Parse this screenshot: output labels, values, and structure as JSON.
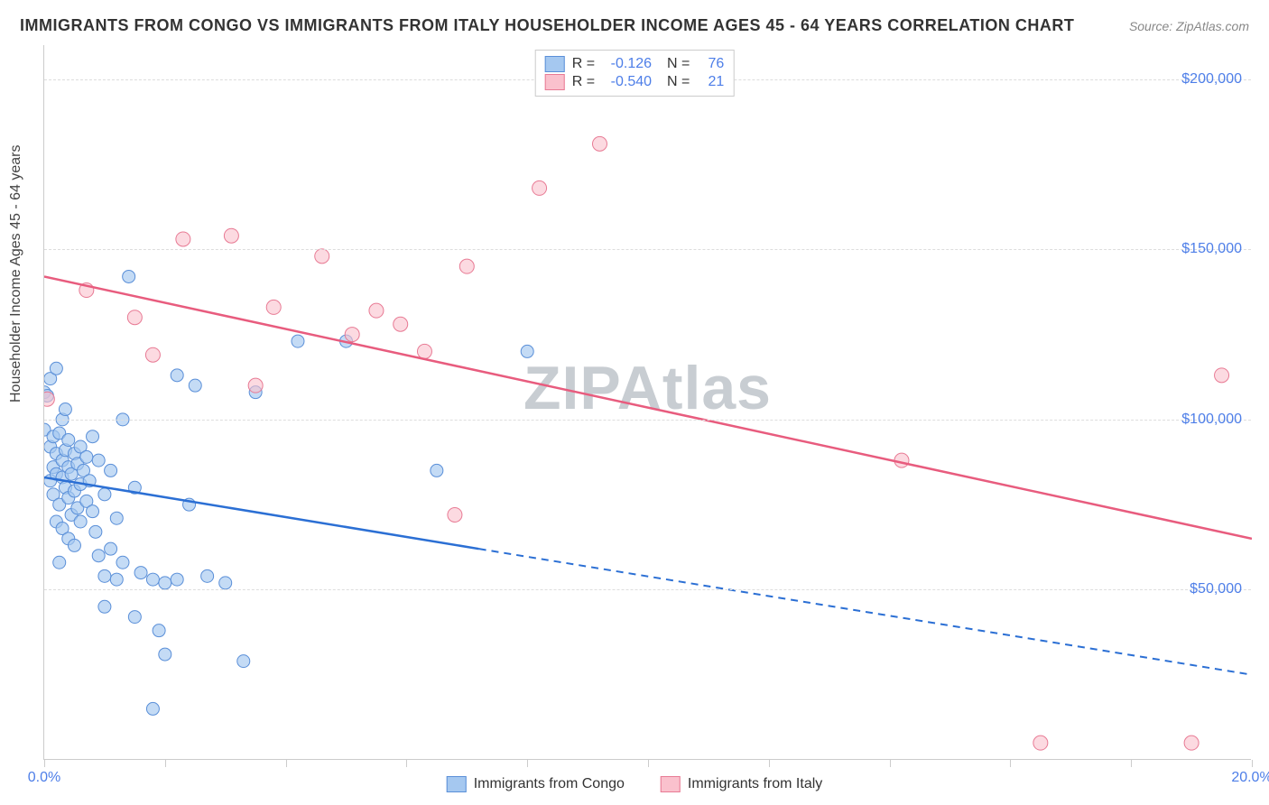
{
  "title": "IMMIGRANTS FROM CONGO VS IMMIGRANTS FROM ITALY HOUSEHOLDER INCOME AGES 45 - 64 YEARS CORRELATION CHART",
  "source": "Source: ZipAtlas.com",
  "watermark": "ZIPAtlas",
  "y_axis_label": "Householder Income Ages 45 - 64 years",
  "chart": {
    "type": "scatter",
    "xlim": [
      0,
      20
    ],
    "ylim": [
      0,
      210000
    ],
    "x_ticks": [
      0,
      2,
      4,
      6,
      8,
      10,
      12,
      14,
      16,
      18,
      20
    ],
    "x_tick_labels": {
      "0": "0.0%",
      "20": "20.0%"
    },
    "y_ticks": [
      50000,
      100000,
      150000,
      200000
    ],
    "y_tick_labels": {
      "50000": "$50,000",
      "100000": "$100,000",
      "150000": "$150,000",
      "200000": "$200,000"
    },
    "grid_color": "#dddddd",
    "axis_color": "#cccccc",
    "background_color": "#ffffff",
    "series": [
      {
        "name": "Immigrants from Congo",
        "color_fill": "#a5c8f0",
        "color_stroke": "#5a8fd8",
        "line_color": "#2b6fd4",
        "marker_radius": 7,
        "marker_opacity": 0.65,
        "R": "-0.126",
        "N": "76",
        "regression": {
          "x1": 0,
          "y1": 83000,
          "x2_solid": 7.2,
          "y2_solid": 62000,
          "x2_dash": 20,
          "y2_dash": 25000
        },
        "points": [
          [
            0.0,
            108000
          ],
          [
            0.0,
            97000
          ],
          [
            0.05,
            107000
          ],
          [
            0.1,
            82000
          ],
          [
            0.1,
            112000
          ],
          [
            0.1,
            92000
          ],
          [
            0.15,
            86000
          ],
          [
            0.15,
            78000
          ],
          [
            0.15,
            95000
          ],
          [
            0.2,
            115000
          ],
          [
            0.2,
            70000
          ],
          [
            0.2,
            84000
          ],
          [
            0.2,
            90000
          ],
          [
            0.25,
            96000
          ],
          [
            0.25,
            75000
          ],
          [
            0.25,
            58000
          ],
          [
            0.3,
            83000
          ],
          [
            0.3,
            100000
          ],
          [
            0.3,
            68000
          ],
          [
            0.3,
            88000
          ],
          [
            0.35,
            80000
          ],
          [
            0.35,
            91000
          ],
          [
            0.35,
            103000
          ],
          [
            0.4,
            77000
          ],
          [
            0.4,
            86000
          ],
          [
            0.4,
            65000
          ],
          [
            0.4,
            94000
          ],
          [
            0.45,
            72000
          ],
          [
            0.45,
            84000
          ],
          [
            0.5,
            79000
          ],
          [
            0.5,
            90000
          ],
          [
            0.5,
            63000
          ],
          [
            0.55,
            87000
          ],
          [
            0.55,
            74000
          ],
          [
            0.6,
            81000
          ],
          [
            0.6,
            92000
          ],
          [
            0.6,
            70000
          ],
          [
            0.65,
            85000
          ],
          [
            0.7,
            76000
          ],
          [
            0.7,
            89000
          ],
          [
            0.75,
            82000
          ],
          [
            0.8,
            73000
          ],
          [
            0.8,
            95000
          ],
          [
            0.85,
            67000
          ],
          [
            0.9,
            88000
          ],
          [
            0.9,
            60000
          ],
          [
            1.0,
            54000
          ],
          [
            1.0,
            78000
          ],
          [
            1.0,
            45000
          ],
          [
            1.1,
            62000
          ],
          [
            1.1,
            85000
          ],
          [
            1.2,
            53000
          ],
          [
            1.2,
            71000
          ],
          [
            1.3,
            100000
          ],
          [
            1.3,
            58000
          ],
          [
            1.4,
            142000
          ],
          [
            1.5,
            42000
          ],
          [
            1.5,
            80000
          ],
          [
            1.6,
            55000
          ],
          [
            1.8,
            53000
          ],
          [
            1.8,
            15000
          ],
          [
            1.9,
            38000
          ],
          [
            2.0,
            31000
          ],
          [
            2.0,
            52000
          ],
          [
            2.2,
            113000
          ],
          [
            2.2,
            53000
          ],
          [
            2.4,
            75000
          ],
          [
            2.5,
            110000
          ],
          [
            2.7,
            54000
          ],
          [
            3.0,
            52000
          ],
          [
            3.3,
            29000
          ],
          [
            3.5,
            108000
          ],
          [
            4.2,
            123000
          ],
          [
            5.0,
            123000
          ],
          [
            6.5,
            85000
          ],
          [
            8.0,
            120000
          ]
        ]
      },
      {
        "name": "Immigrants from Italy",
        "color_fill": "#fac1cd",
        "color_stroke": "#e87a94",
        "line_color": "#e85c7e",
        "marker_radius": 8,
        "marker_opacity": 0.6,
        "R": "-0.540",
        "N": "21",
        "regression": {
          "x1": 0,
          "y1": 142000,
          "x2_solid": 20,
          "y2_solid": 65000,
          "x2_dash": 20,
          "y2_dash": 65000
        },
        "points": [
          [
            0.05,
            106000
          ],
          [
            0.7,
            138000
          ],
          [
            1.5,
            130000
          ],
          [
            1.8,
            119000
          ],
          [
            2.3,
            153000
          ],
          [
            3.1,
            154000
          ],
          [
            3.5,
            110000
          ],
          [
            3.8,
            133000
          ],
          [
            4.6,
            148000
          ],
          [
            5.1,
            125000
          ],
          [
            5.5,
            132000
          ],
          [
            5.9,
            128000
          ],
          [
            6.3,
            120000
          ],
          [
            6.8,
            72000
          ],
          [
            7.0,
            145000
          ],
          [
            8.2,
            168000
          ],
          [
            9.2,
            181000
          ],
          [
            14.2,
            88000
          ],
          [
            16.5,
            5000
          ],
          [
            19.0,
            5000
          ],
          [
            19.5,
            113000
          ]
        ]
      }
    ]
  },
  "legend_bottom": [
    {
      "label": "Immigrants from Congo",
      "fill": "#a5c8f0",
      "stroke": "#5a8fd8"
    },
    {
      "label": "Immigrants from Italy",
      "fill": "#fac1cd",
      "stroke": "#e87a94"
    }
  ]
}
